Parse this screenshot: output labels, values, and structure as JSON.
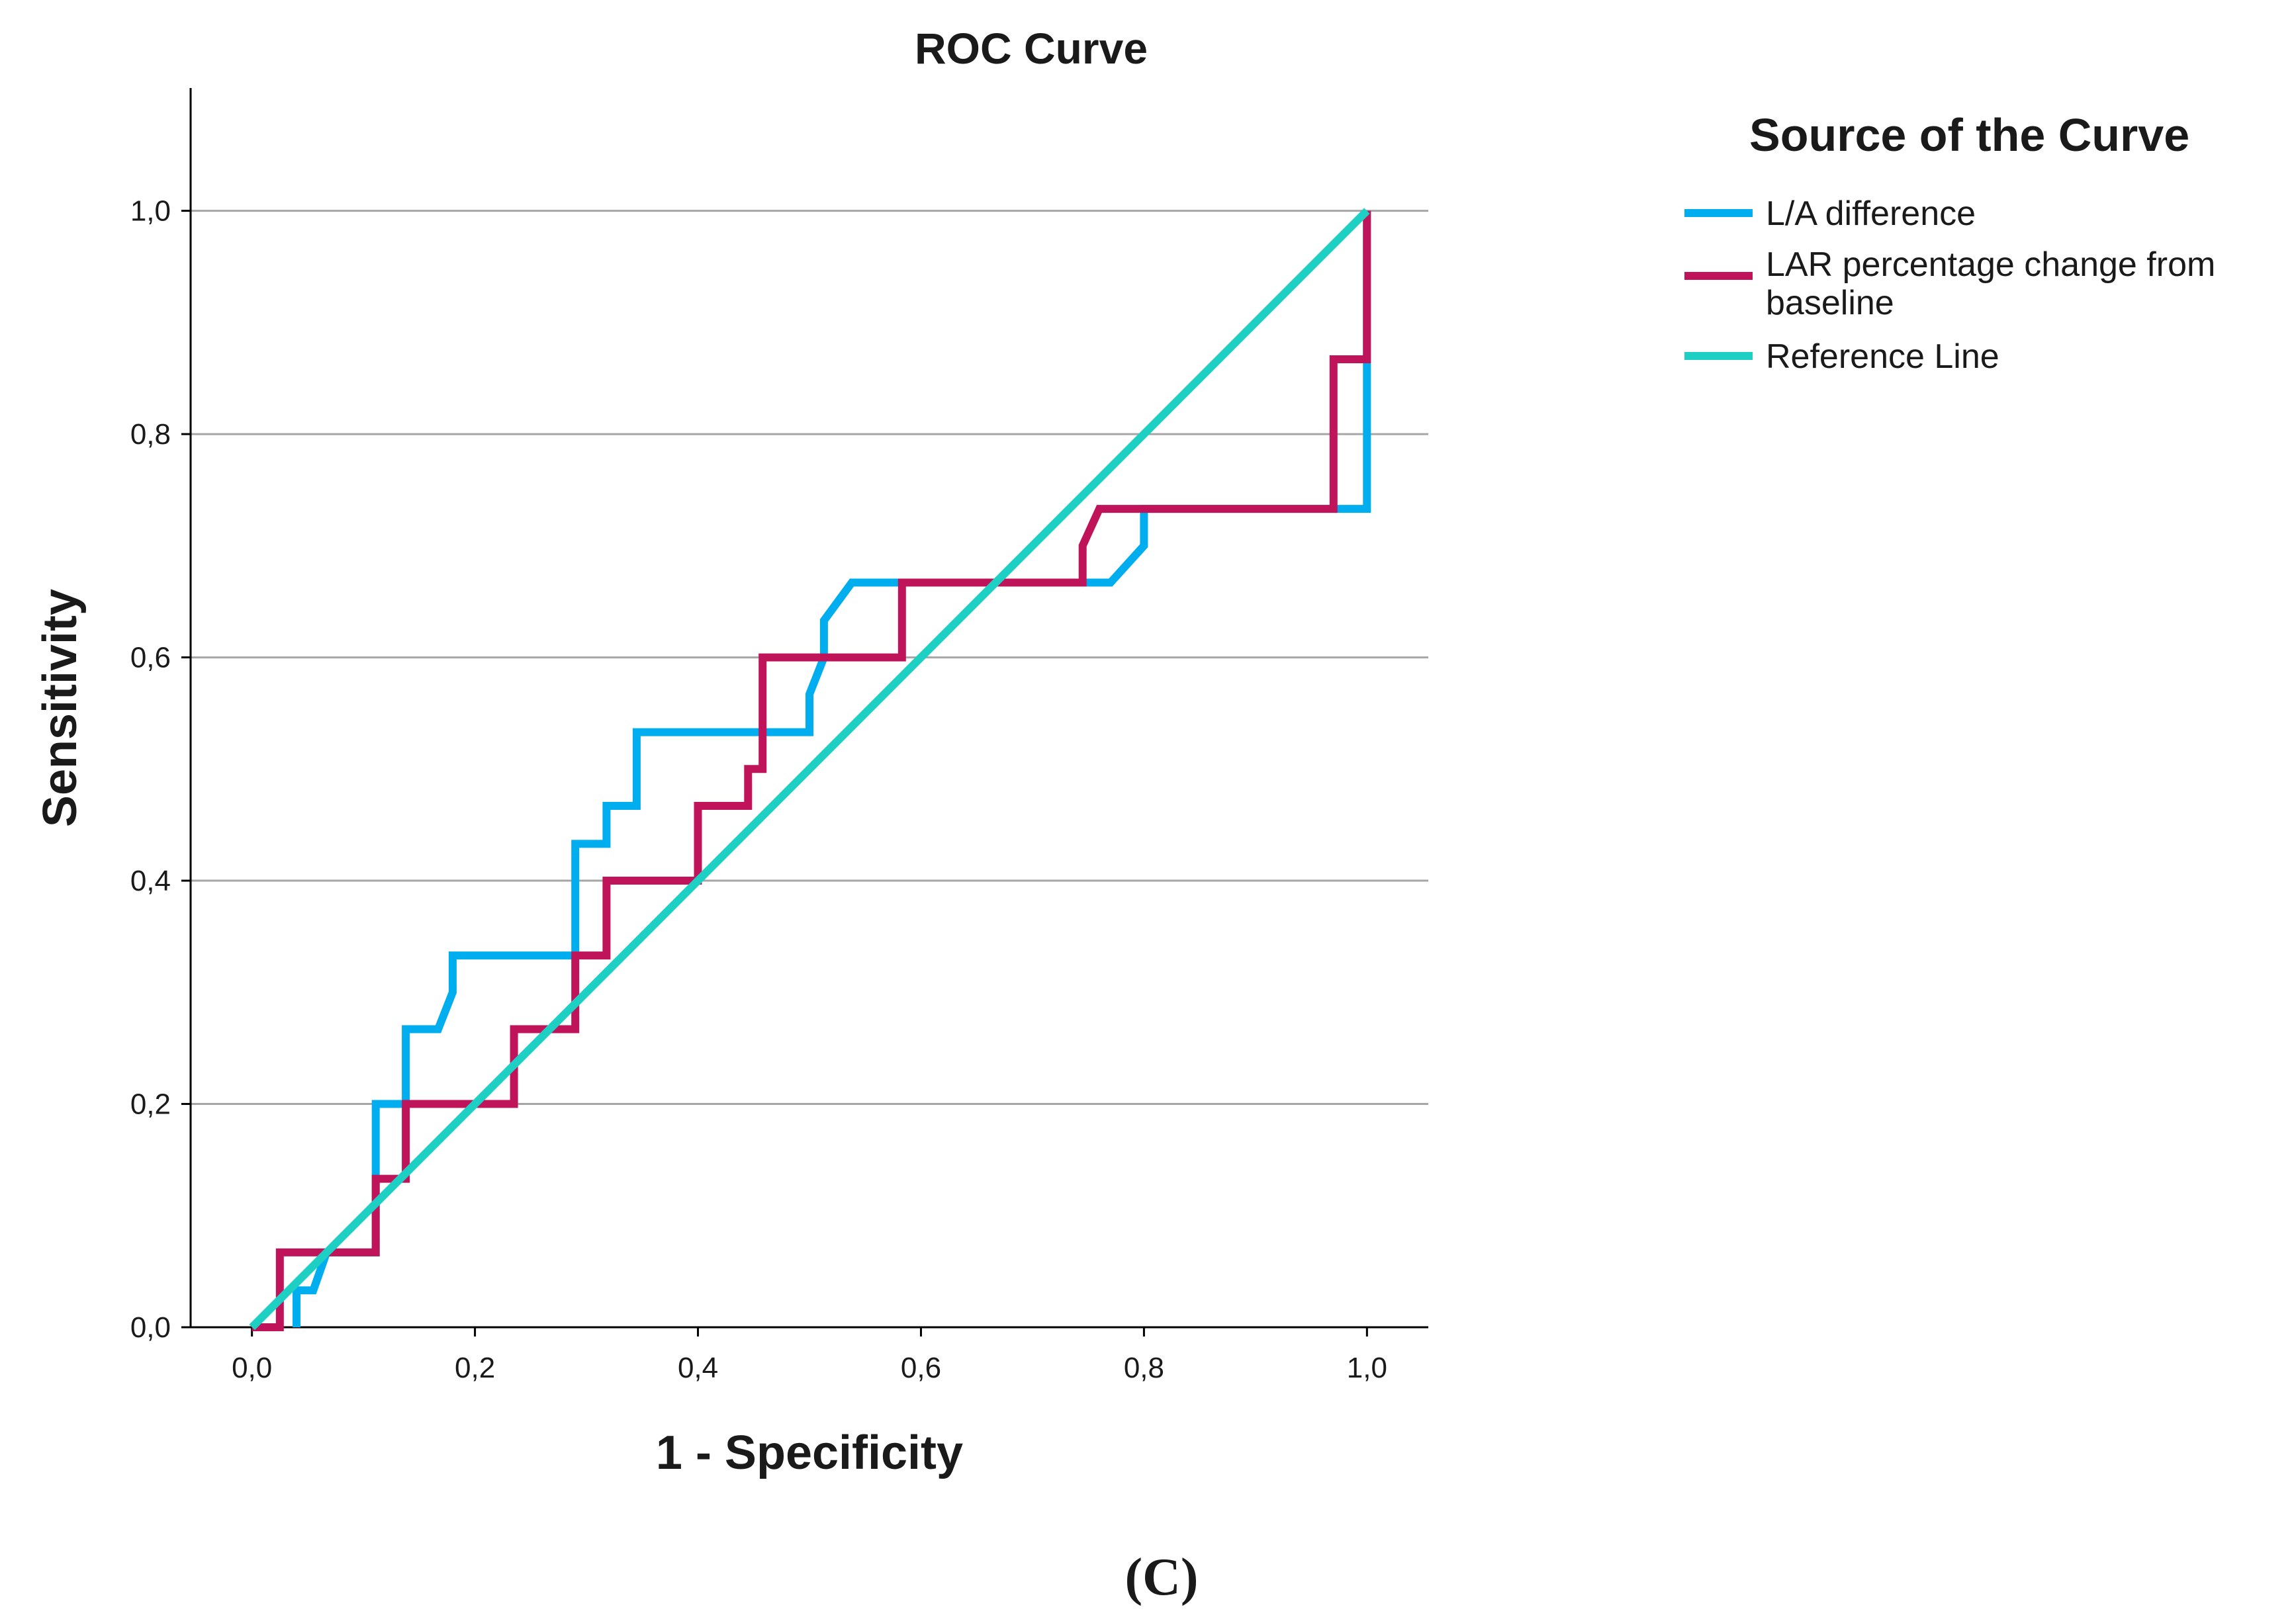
{
  "chart_data": {
    "type": "line",
    "title": "ROC Curve",
    "xlabel": "1 - Specificity",
    "ylabel": "Sensitivity",
    "xlim": [
      -0.055,
      1.055
    ],
    "ylim": [
      0.0,
      1.11
    ],
    "x_ticks": [
      0.0,
      0.2,
      0.4,
      0.6,
      0.8,
      1.0
    ],
    "x_tick_labels": [
      "0,0",
      "0,2",
      "0,4",
      "0,6",
      "0,8",
      "1,0"
    ],
    "y_ticks": [
      0.0,
      0.2,
      0.4,
      0.6,
      0.8,
      1.0
    ],
    "y_tick_labels": [
      "0,0",
      "0,2",
      "0,4",
      "0,6",
      "0,8",
      "1,0"
    ],
    "grid": "horizontal",
    "legend": {
      "title": "Source of the Curve",
      "position": "right"
    },
    "panel_label": "(C)",
    "series": [
      {
        "name": "L/A difference",
        "legend_lines": [
          "L/A difference"
        ],
        "color": "#00aeef",
        "points": [
          [
            0.04,
            0.0
          ],
          [
            0.04,
            0.033
          ],
          [
            0.055,
            0.033
          ],
          [
            0.067,
            0.067
          ],
          [
            0.111,
            0.067
          ],
          [
            0.111,
            0.2
          ],
          [
            0.138,
            0.2
          ],
          [
            0.138,
            0.267
          ],
          [
            0.167,
            0.267
          ],
          [
            0.18,
            0.3
          ],
          [
            0.18,
            0.333
          ],
          [
            0.29,
            0.333
          ],
          [
            0.29,
            0.433
          ],
          [
            0.318,
            0.433
          ],
          [
            0.318,
            0.467
          ],
          [
            0.345,
            0.467
          ],
          [
            0.345,
            0.533
          ],
          [
            0.5,
            0.533
          ],
          [
            0.5,
            0.567
          ],
          [
            0.513,
            0.6
          ],
          [
            0.513,
            0.633
          ],
          [
            0.538,
            0.667
          ],
          [
            0.583,
            0.667
          ],
          [
            0.583,
            0.667
          ],
          [
            0.77,
            0.667
          ],
          [
            0.8,
            0.7
          ],
          [
            0.8,
            0.733
          ],
          [
            0.97,
            0.733
          ],
          [
            0.97,
            0.733
          ],
          [
            1.0,
            0.733
          ],
          [
            1.0,
            0.867
          ],
          [
            1.0,
            1.0
          ]
        ]
      },
      {
        "name": "LAR percentage change from baseline",
        "legend_lines": [
          "LAR percentage change from",
          "baseline"
        ],
        "color": "#c0145a",
        "points": [
          [
            0.0,
            0.0
          ],
          [
            0.025,
            0.0
          ],
          [
            0.025,
            0.067
          ],
          [
            0.111,
            0.067
          ],
          [
            0.111,
            0.133
          ],
          [
            0.138,
            0.133
          ],
          [
            0.138,
            0.2
          ],
          [
            0.235,
            0.2
          ],
          [
            0.235,
            0.267
          ],
          [
            0.29,
            0.267
          ],
          [
            0.29,
            0.333
          ],
          [
            0.318,
            0.333
          ],
          [
            0.318,
            0.4
          ],
          [
            0.4,
            0.4
          ],
          [
            0.4,
            0.467
          ],
          [
            0.445,
            0.467
          ],
          [
            0.445,
            0.5
          ],
          [
            0.458,
            0.5
          ],
          [
            0.458,
            0.6
          ],
          [
            0.583,
            0.6
          ],
          [
            0.583,
            0.667
          ],
          [
            0.745,
            0.667
          ],
          [
            0.745,
            0.7
          ],
          [
            0.76,
            0.733
          ],
          [
            0.97,
            0.733
          ],
          [
            0.97,
            0.867
          ],
          [
            1.0,
            0.867
          ],
          [
            1.0,
            1.0
          ]
        ]
      },
      {
        "name": "Reference Line",
        "legend_lines": [
          "Reference Line"
        ],
        "color": "#1ecfc4",
        "points": [
          [
            0.0,
            0.0
          ],
          [
            1.0,
            1.0
          ]
        ]
      }
    ]
  }
}
